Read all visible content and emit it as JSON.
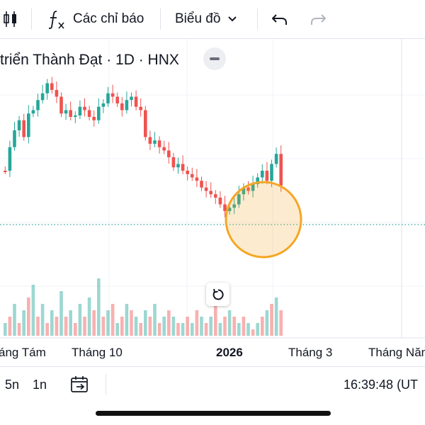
{
  "toolbar": {
    "indicators_label": "Các chỉ báo",
    "chart_type_label": "Biểu đồ",
    "icons": [
      "candles-icon",
      "fx-icon",
      "chevron-down-icon",
      "undo-icon",
      "redo-icon"
    ]
  },
  "legend": {
    "title": "triển Thành Đạt · 1D · HNX"
  },
  "chart_data": {
    "type": "candlestick",
    "x_axis_labels": [
      "áng Tám",
      "Tháng 10",
      "2026",
      "Tháng 3",
      "Tháng Năm"
    ],
    "highlight_marker": {
      "shape": "circle",
      "color": "#f5a623"
    },
    "last_price_line": {
      "style": "dotted",
      "color": "#26a69a"
    },
    "up_color": "#26a69a",
    "down_color": "#ef5350",
    "price_series": [
      [
        0,
        290
      ],
      [
        1,
        255
      ],
      [
        2,
        230
      ],
      [
        3,
        215
      ],
      [
        4,
        240
      ],
      [
        5,
        205
      ],
      [
        6,
        200
      ],
      [
        7,
        185
      ],
      [
        8,
        175
      ],
      [
        9,
        160
      ],
      [
        10,
        170
      ],
      [
        11,
        180
      ],
      [
        12,
        205
      ],
      [
        13,
        200
      ],
      [
        14,
        210
      ],
      [
        15,
        208
      ],
      [
        16,
        195
      ],
      [
        17,
        200
      ],
      [
        18,
        210
      ],
      [
        19,
        215
      ],
      [
        20,
        195
      ],
      [
        21,
        190
      ],
      [
        22,
        175
      ],
      [
        23,
        180
      ],
      [
        24,
        190
      ],
      [
        25,
        200
      ],
      [
        26,
        185
      ],
      [
        27,
        180
      ],
      [
        28,
        195
      ],
      [
        29,
        200
      ],
      [
        30,
        240
      ],
      [
        31,
        250
      ],
      [
        32,
        245
      ],
      [
        33,
        255
      ],
      [
        34,
        260
      ],
      [
        35,
        270
      ],
      [
        36,
        285
      ],
      [
        37,
        280
      ],
      [
        38,
        290
      ],
      [
        39,
        295
      ],
      [
        40,
        300
      ],
      [
        41,
        305
      ],
      [
        42,
        315
      ],
      [
        43,
        320
      ],
      [
        44,
        325
      ],
      [
        45,
        330
      ],
      [
        46,
        340
      ],
      [
        47,
        350
      ],
      [
        48,
        345
      ],
      [
        49,
        340
      ],
      [
        50,
        325
      ],
      [
        51,
        315
      ],
      [
        52,
        320
      ],
      [
        53,
        310
      ],
      [
        54,
        300
      ],
      [
        55,
        290
      ],
      [
        56,
        305
      ],
      [
        57,
        280
      ],
      [
        58,
        265
      ],
      [
        59,
        312
      ]
    ],
    "volume_series": [
      2,
      3,
      5,
      2,
      4,
      6,
      8,
      3,
      5,
      2,
      4,
      3,
      7,
      3,
      4,
      2,
      5,
      3,
      6,
      4,
      9,
      3,
      4,
      5,
      2,
      3,
      5,
      4,
      3,
      2,
      4,
      3,
      5,
      2,
      3,
      4,
      3,
      2,
      2,
      3,
      2,
      4,
      3,
      2,
      3,
      5,
      2,
      3,
      4,
      3,
      2,
      3,
      2,
      1,
      2,
      3,
      4,
      5,
      6,
      4
    ]
  },
  "reset": {
    "icon": "reset-icon"
  },
  "bottombar": {
    "range_5n": "5n",
    "range_1n": "1n",
    "goto_icon": "calendar-goto-icon",
    "clock": "16:39:48 (UT"
  }
}
